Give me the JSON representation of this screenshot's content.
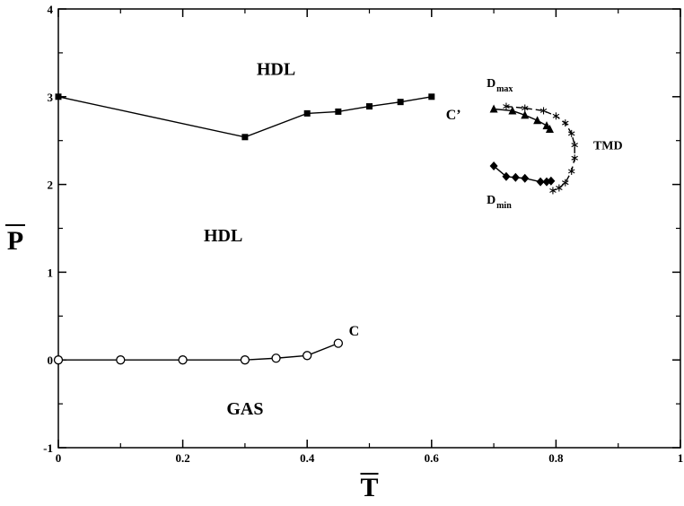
{
  "chart_data": {
    "type": "scatter",
    "xlabel": "T",
    "ylabel": "P",
    "xlim": [
      0,
      1
    ],
    "ylim": [
      -1,
      4
    ],
    "xticks": [
      0,
      0.2,
      0.4,
      0.6,
      0.8,
      1
    ],
    "xtick_labels": [
      "0",
      "0.2",
      "0.4",
      "0.6",
      "0.8",
      "1"
    ],
    "yticks": [
      -1,
      0,
      1,
      2,
      3,
      4
    ],
    "ytick_labels": [
      "-1",
      "0",
      "1",
      "2",
      "3",
      "4"
    ],
    "series": [
      {
        "marker": "square",
        "style": "solid",
        "x": [
          0.0,
          0.3,
          0.4,
          0.45,
          0.5,
          0.55,
          0.6
        ],
        "y": [
          3.0,
          2.54,
          2.81,
          2.83,
          2.89,
          2.94,
          3.0
        ]
      },
      {
        "marker": "circle",
        "style": "solid",
        "x": [
          0.0,
          0.1,
          0.2,
          0.3,
          0.35,
          0.4,
          0.45
        ],
        "y": [
          0.0,
          0.0,
          0.0,
          0.0,
          0.02,
          0.05,
          0.19
        ]
      },
      {
        "marker": "triangle",
        "style": "solid",
        "x": [
          0.7,
          0.73,
          0.75,
          0.77,
          0.785,
          0.79
        ],
        "y": [
          2.86,
          2.84,
          2.79,
          2.73,
          2.67,
          2.63
        ]
      },
      {
        "marker": "diamond",
        "style": "solid",
        "x": [
          0.7,
          0.72,
          0.735,
          0.75,
          0.775,
          0.785,
          0.792
        ],
        "y": [
          2.21,
          2.09,
          2.08,
          2.07,
          2.03,
          2.03,
          2.04
        ]
      },
      {
        "marker": "asterisk",
        "style": "dashed",
        "x": [
          0.72,
          0.75,
          0.78,
          0.8,
          0.815,
          0.825,
          0.83,
          0.83,
          0.825,
          0.815,
          0.805,
          0.795
        ],
        "y": [
          2.89,
          2.87,
          2.84,
          2.78,
          2.7,
          2.58,
          2.45,
          2.3,
          2.15,
          2.02,
          1.96,
          1.93
        ]
      }
    ],
    "annotations": [
      {
        "text": "HDL",
        "x": 0.35,
        "y": 3.25,
        "kind": "region"
      },
      {
        "text": "HDL",
        "x": 0.265,
        "y": 1.35,
        "kind": "region"
      },
      {
        "text": "GAS",
        "x": 0.3,
        "y": -0.62,
        "kind": "region"
      },
      {
        "text": "C’",
        "x": 0.623,
        "y": 2.74,
        "kind": "point"
      },
      {
        "text": "C",
        "x": 0.467,
        "y": 0.28,
        "kind": "point"
      },
      {
        "text": "TMD",
        "x": 0.86,
        "y": 2.4,
        "kind": "point"
      },
      {
        "text": "D",
        "sub": "max",
        "x": 0.7,
        "y": 3.11,
        "kind": "sub"
      },
      {
        "text": "D",
        "sub": "min",
        "x": 0.7,
        "y": 1.78,
        "kind": "sub"
      }
    ]
  }
}
